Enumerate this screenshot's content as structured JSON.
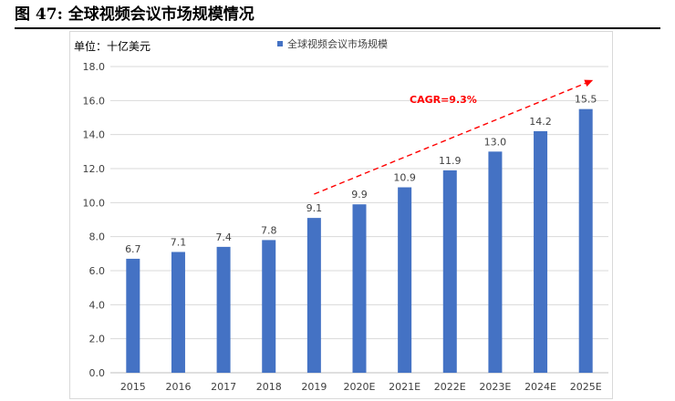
{
  "figure": {
    "title": "图 47:  全球视频会议市场规模情况"
  },
  "chart_data": {
    "type": "bar",
    "title": "",
    "unit_label": "单位：十亿美元",
    "xlabel": "",
    "ylabel": "",
    "categories": [
      "2015",
      "2016",
      "2017",
      "2018",
      "2019",
      "2020E",
      "2021E",
      "2022E",
      "2023E",
      "2024E",
      "2025E"
    ],
    "series": [
      {
        "name": "全球视频会议市场规模",
        "values": [
          6.7,
          7.1,
          7.4,
          7.8,
          9.1,
          9.9,
          10.9,
          11.9,
          13.0,
          14.2,
          15.5
        ],
        "labels": [
          "6.7",
          "7.1",
          "7.4",
          "7.8",
          "9.1",
          "9.9",
          "10.9",
          "11.9",
          "13.0",
          "14.2",
          "15.5"
        ],
        "color": "#4472C4"
      }
    ],
    "ylim": [
      0,
      18
    ],
    "yticks": [
      "0.0",
      "2.0",
      "4.0",
      "6.0",
      "8.0",
      "10.0",
      "12.0",
      "14.0",
      "16.0",
      "18.0"
    ],
    "grid": true,
    "legend": "top",
    "annotation": {
      "text": "CAGR=9.3%",
      "color": "#FF0000",
      "from": {
        "x": "2019",
        "y": 10.5
      },
      "to": {
        "x": "2025E",
        "y": 17.2
      }
    }
  }
}
